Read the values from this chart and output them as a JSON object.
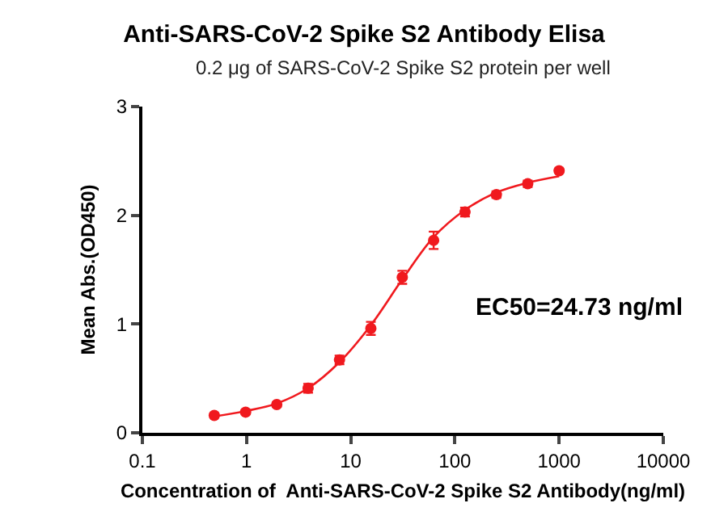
{
  "chart_data": {
    "type": "scatter",
    "title": "Anti-SARS-CoV-2 Spike S2 Antibody Elisa",
    "subtitle": "0.2 μg of SARS-CoV-2 Spike S2 protein per well",
    "xlabel": "Concentration of  Anti-SARS-CoV-2 Spike S2 Antibody(ng/ml)",
    "ylabel": "Mean Abs.(OD450)",
    "x": [
      0.49,
      0.98,
      1.95,
      3.9,
      7.8,
      15.6,
      31.25,
      62.5,
      125,
      250,
      500,
      1000
    ],
    "series": [
      {
        "type": "scatter",
        "color": "#f0191e",
        "marker": "circle",
        "values": [
          0.16,
          0.19,
          0.26,
          0.41,
          0.67,
          0.96,
          1.43,
          1.77,
          2.03,
          2.19,
          2.29,
          2.41
        ],
        "errors": [
          0.02,
          0.02,
          0.02,
          0.04,
          0.04,
          0.06,
          0.06,
          0.08,
          0.04,
          0.03,
          0.03,
          0.02
        ]
      },
      {
        "type": "line",
        "color": "#f0191e",
        "line_style": "solid",
        "x": [
          0.49,
          0.98,
          1.95,
          3.9,
          7.8,
          15.6,
          31.25,
          62.5,
          125,
          250,
          500,
          1000
        ],
        "values": [
          0.15,
          0.2,
          0.27,
          0.41,
          0.65,
          0.99,
          1.41,
          1.8,
          2.05,
          2.21,
          2.3,
          2.36
        ]
      }
    ],
    "annotations": [
      "EC50=24.73 ng/ml"
    ],
    "log": "x",
    "xlim": [
      0.1,
      10000
    ],
    "xticks": [
      0.1,
      1,
      10,
      100,
      1000,
      10000
    ],
    "ylim": [
      0,
      3
    ],
    "yticks": [
      0,
      1,
      2,
      3
    ],
    "grid": false
  }
}
